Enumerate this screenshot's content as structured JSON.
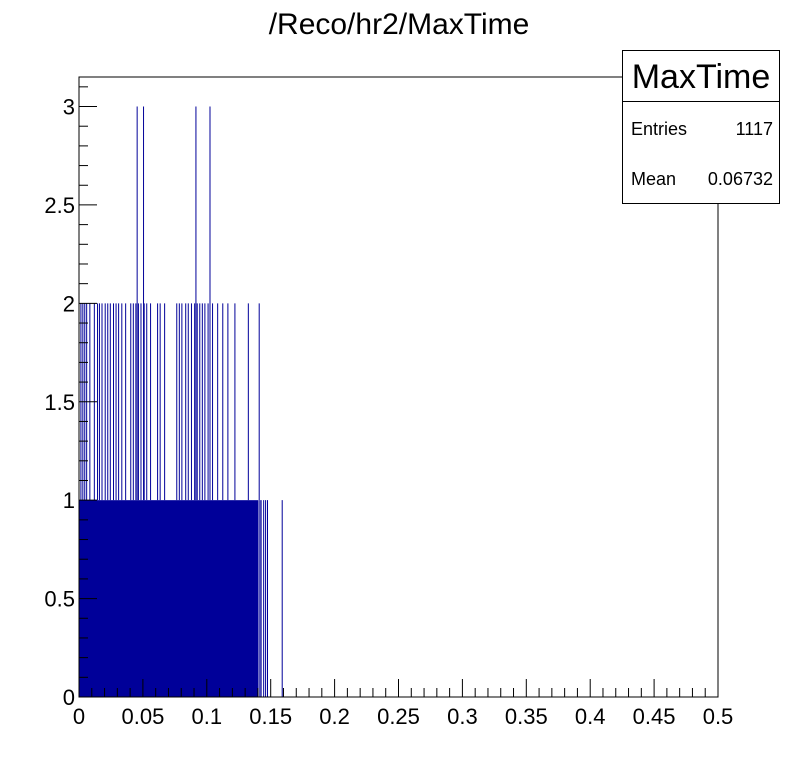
{
  "chart_data": {
    "type": "bar",
    "title": "/Reco/hr2/MaxTime",
    "xlabel": "",
    "ylabel": "",
    "xlim": [
      0,
      0.5
    ],
    "ylim": [
      0,
      3.15
    ],
    "x_ticks": [
      "0",
      "0.05",
      "0.1",
      "0.15",
      "0.2",
      "0.25",
      "0.3",
      "0.35",
      "0.4",
      "0.45",
      "0.5"
    ],
    "y_ticks": [
      "0",
      "0.5",
      "1",
      "1.5",
      "2",
      "2.5",
      "3"
    ],
    "bar_color": "#000099",
    "description_bins": "histogram with fine bins; counts mostly 1 over x in [0, 0.14], many spikes to 2, a few to 3",
    "filled_range": [
      0,
      0.1405
    ],
    "sparse_count1_x": [
      0.1415,
      0.1425,
      0.1445,
      0.146,
      0.1475,
      0.159
    ],
    "count2_x": [
      0.0015,
      0.003,
      0.0045,
      0.006,
      0.0085,
      0.012,
      0.0145,
      0.016,
      0.018,
      0.0205,
      0.0225,
      0.0245,
      0.027,
      0.029,
      0.031,
      0.0335,
      0.0365,
      0.0405,
      0.0425,
      0.0445,
      0.0465,
      0.0485,
      0.051,
      0.053,
      0.056,
      0.0615,
      0.0635,
      0.067,
      0.0765,
      0.0785,
      0.0805,
      0.0835,
      0.0855,
      0.088,
      0.0905,
      0.0925,
      0.0945,
      0.0965,
      0.0985,
      0.101,
      0.1045,
      0.1085,
      0.1125,
      0.1165,
      0.122,
      0.1325,
      0.141
    ],
    "count3_x": [
      0.0455,
      0.0505,
      0.0915,
      0.1025
    ],
    "stats": {
      "name": "MaxTime",
      "entries_label": "Entries",
      "entries_value": "1117",
      "mean_label": "Mean",
      "mean_value": "0.06732"
    }
  }
}
